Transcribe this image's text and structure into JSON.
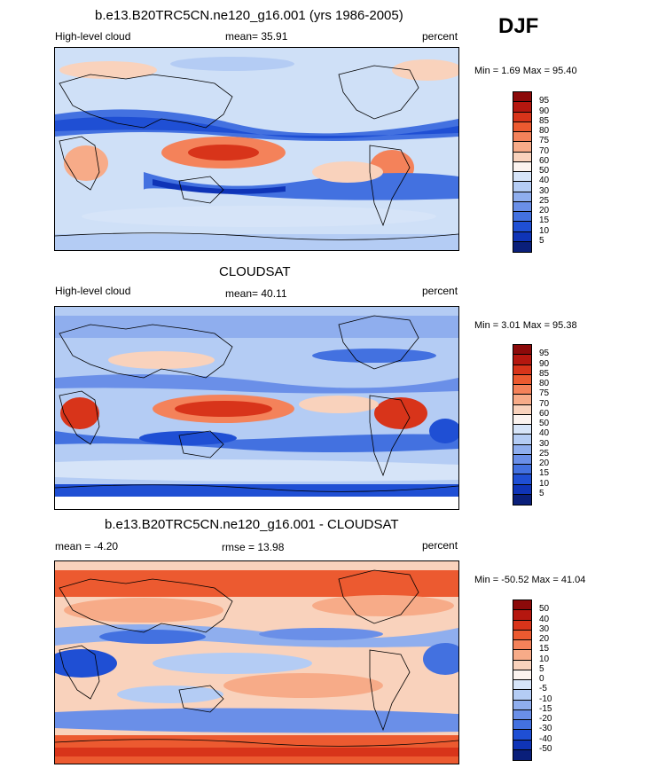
{
  "season": "DJF",
  "panels": [
    {
      "title": "b.e13.B20TRC5CN.ne120_g16.001 (yrs 1986-2005)",
      "left_label": "High-level cloud",
      "center_label": "mean=  35.91",
      "right_label": "percent",
      "minmax": "Min =   1.69 Max =  95.40",
      "colorbar_labels": [
        "95",
        "90",
        "85",
        "80",
        "75",
        "70",
        "60",
        "50",
        "40",
        "30",
        "25",
        "20",
        "15",
        "10",
        "5"
      ],
      "colorbar_colors": [
        "#8c0a0a",
        "#b5170f",
        "#d8341a",
        "#ec5a30",
        "#f4825a",
        "#f7ab88",
        "#f9d2bc",
        "#fbf3ef",
        "#d6e4f8",
        "#b4ccf4",
        "#8faeee",
        "#6a8fe8",
        "#4371e0",
        "#1f4fd4",
        "#0f34b7",
        "#0a1f7a"
      ],
      "field": "model"
    },
    {
      "title": "CLOUDSAT",
      "left_label": "High-level cloud",
      "center_label": "mean=  40.11",
      "right_label": "percent",
      "minmax": "Min =   3.01 Max =  95.38",
      "colorbar_labels": [
        "95",
        "90",
        "85",
        "80",
        "75",
        "70",
        "60",
        "50",
        "40",
        "30",
        "25",
        "20",
        "15",
        "10",
        "5"
      ],
      "colorbar_colors": [
        "#8c0a0a",
        "#b5170f",
        "#d8341a",
        "#ec5a30",
        "#f4825a",
        "#f7ab88",
        "#f9d2bc",
        "#fbf3ef",
        "#d6e4f8",
        "#b4ccf4",
        "#8faeee",
        "#6a8fe8",
        "#4371e0",
        "#1f4fd4",
        "#0f34b7",
        "#0a1f7a"
      ],
      "field": "obs"
    },
    {
      "title": "b.e13.B20TRC5CN.ne120_g16.001 - CLOUDSAT",
      "left_label": "mean =  -4.20",
      "center_label": "rmse =  13.98",
      "right_label": "percent",
      "minmax": "Min = -50.52 Max =  41.04",
      "colorbar_labels": [
        "50",
        "40",
        "30",
        "20",
        "15",
        "10",
        "5",
        "0",
        "-5",
        "-10",
        "-15",
        "-20",
        "-30",
        "-40",
        "-50"
      ],
      "colorbar_colors": [
        "#8c0a0a",
        "#b5170f",
        "#d8341a",
        "#ec5a30",
        "#f4825a",
        "#f7ab88",
        "#f9d2bc",
        "#fbf3ef",
        "#d6e4f8",
        "#b4ccf4",
        "#8faeee",
        "#6a8fe8",
        "#4371e0",
        "#1f4fd4",
        "#0f34b7",
        "#0a1f7a"
      ],
      "field": "diff"
    }
  ]
}
